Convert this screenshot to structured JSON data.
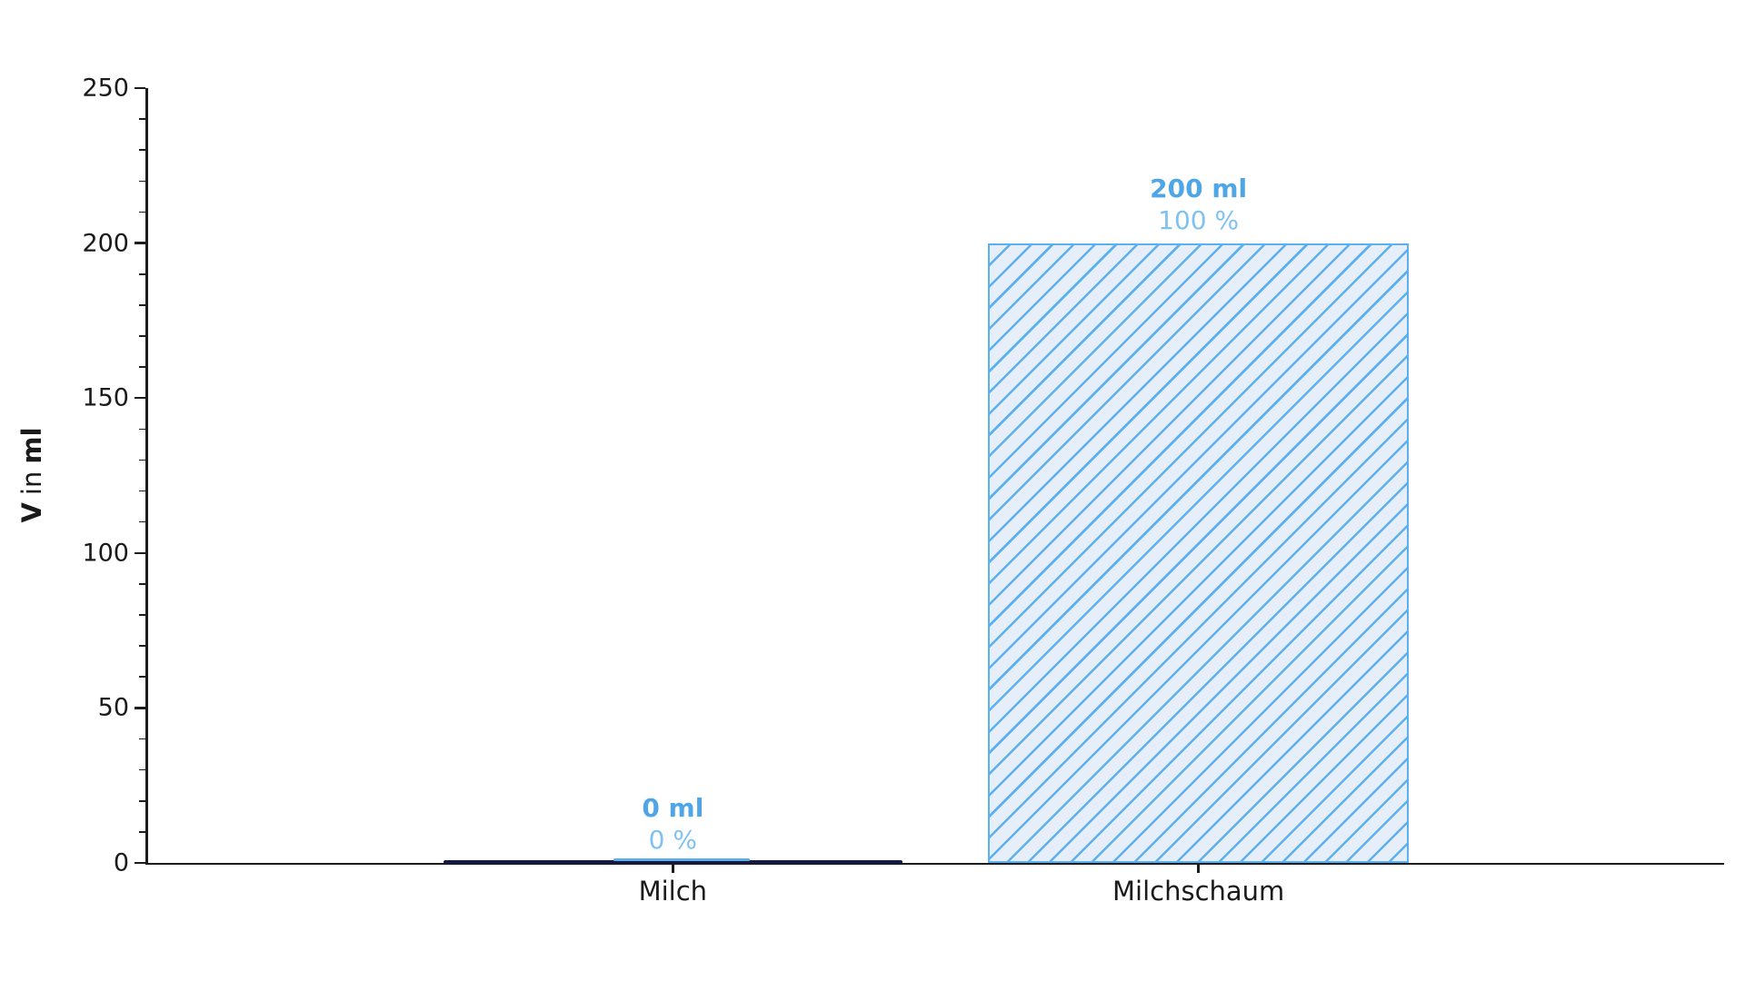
{
  "figure": {
    "ylabel_bold_1": "V",
    "ylabel_regular": "in",
    "ylabel_bold_2": "ml"
  },
  "chart_data": {
    "type": "bar",
    "title": "",
    "xlabel": "",
    "ylabel": "V in ml",
    "categories": [
      "Milch",
      "Milchschaum"
    ],
    "values": [
      0,
      200
    ],
    "unit": "ml",
    "bar_labels": [
      {
        "value": "0 ml",
        "percent": "0 %"
      },
      {
        "value": "200 ml",
        "percent": "100 %"
      }
    ],
    "ylim": [
      0,
      250
    ],
    "yticks": [
      0,
      50,
      100,
      150,
      200,
      250
    ],
    "y_minor_step": 10,
    "xlim": [
      -1,
      2
    ],
    "bar_width": 0.8,
    "grid": false,
    "legend": null,
    "hatch_pattern": "/",
    "colors": {
      "bar_fill": "#e6eefa",
      "bar_edge": "#5cb0ef",
      "hatch": "#5cb0ef",
      "value_label": "#4fa6e6",
      "percent_label": "#7fc2f2",
      "zero_bar_line": "#131b45",
      "zero_bar_highlight": "#5cadea",
      "axis": "#1c1c1c",
      "text": "#1a1a1a"
    }
  }
}
